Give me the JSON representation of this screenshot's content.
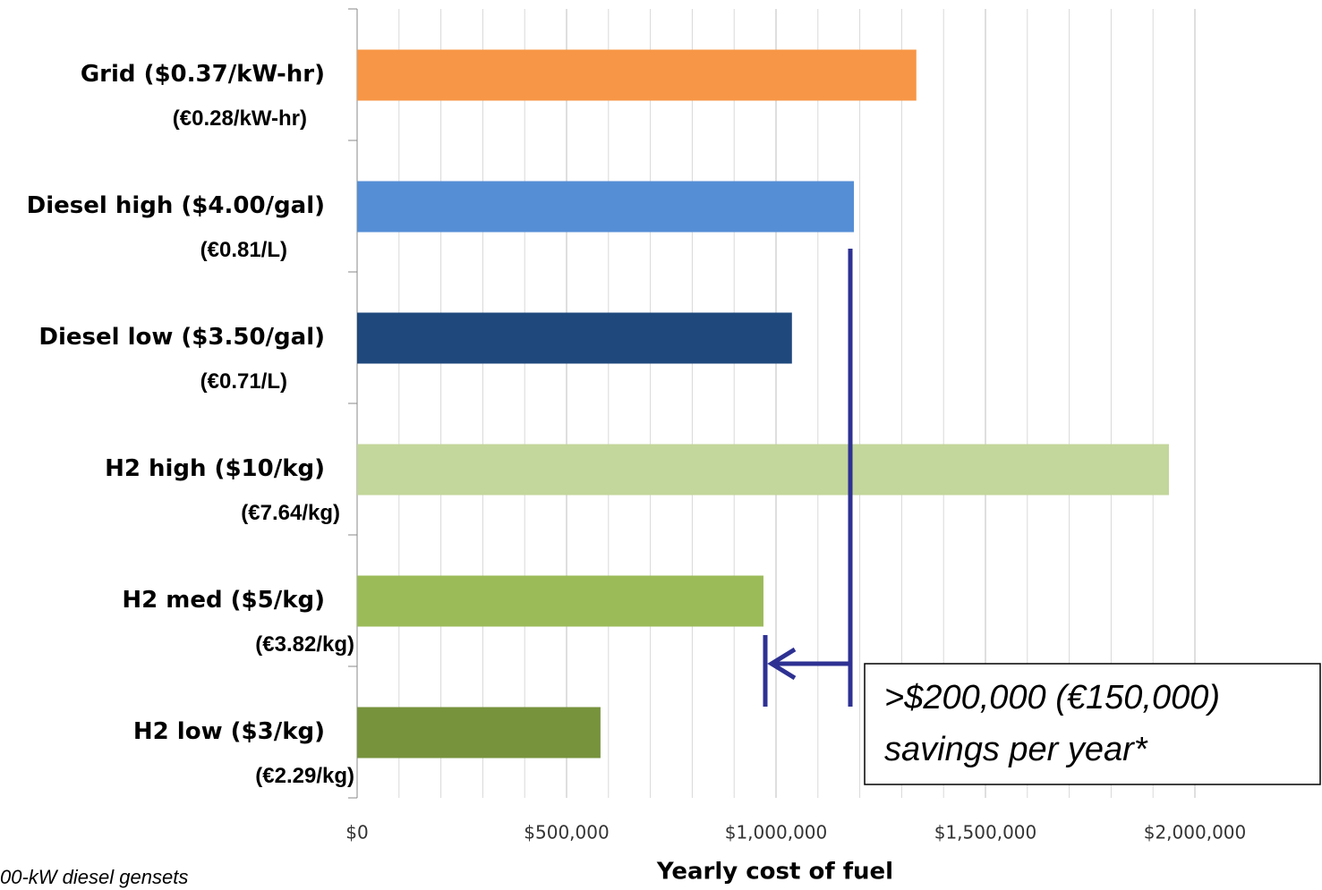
{
  "chart_data": {
    "type": "bar",
    "orientation": "horizontal",
    "categories": [
      "Grid ($0.37/kW-hr)",
      "Diesel high ($4.00/gal)",
      "Diesel low ($3.50/gal)",
      "H2 high ($10/kg)",
      "H2 med ($5/kg)",
      "H2 low ($3/kg)"
    ],
    "subcategories": [
      "(€0.28/kW-hr)",
      "(€0.81/L)",
      "(€0.71/L)",
      "(€7.64/kg)",
      "(€3.82/kg)",
      "(€2.29/kg)"
    ],
    "values": [
      1335000,
      1186000,
      1038000,
      1938000,
      970000,
      581000
    ],
    "colors": [
      "#f79646",
      "#558ed5",
      "#1f497d",
      "#c3d69b",
      "#9bbb59",
      "#77933c"
    ],
    "xlabel": "Yearly cost of fuel",
    "xlim": [
      0,
      2000000
    ],
    "xticks": [
      {
        "value": 0,
        "label": "$0"
      },
      {
        "value": 500000,
        "label": "$500,000"
      },
      {
        "value": 1000000,
        "label": "$1,000,000"
      },
      {
        "value": 1500000,
        "label": "$1,500,000"
      },
      {
        "value": 2000000,
        "label": "$2,000,000"
      }
    ],
    "minor_grid": [
      100000,
      200000,
      300000,
      400000,
      600000,
      700000,
      800000,
      900000,
      1100000,
      1200000,
      1300000,
      1400000,
      1600000,
      1700000,
      1800000,
      1900000
    ],
    "grid": true,
    "annotation": [
      ">$200,000 (€150,000)",
      "savings per year*"
    ],
    "footnote": "00-kW diesel gensets"
  }
}
